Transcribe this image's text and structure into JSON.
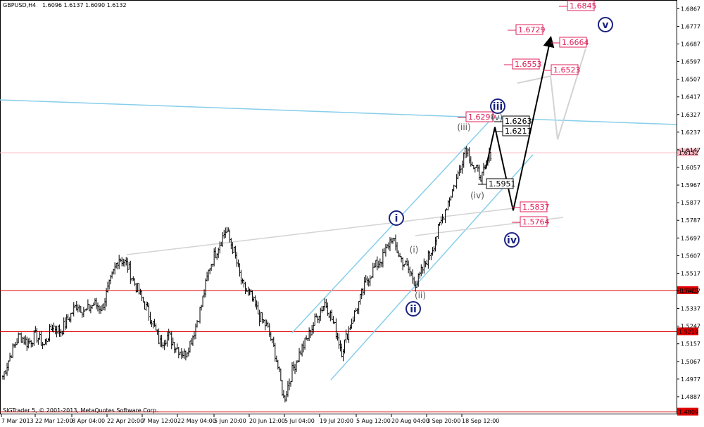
{
  "header": {
    "symbol": "GBPUSD,H4",
    "ohlc": "1.6096 1.6137 1.6090 1.6132"
  },
  "copyright": "SIGTrader 5, © 2001-2013, MetaQuotes Software Corp.",
  "chart_data": {
    "type": "candlestick",
    "x_labels": [
      "7 Mar 2013",
      "22 Mar 12:00",
      "8 Apr 04:00",
      "22 Apr 20:00",
      "7 May 12:00",
      "22 May 04:00",
      "5 Jun 20:00",
      "20 Jun 12:00",
      "5 Jul 04:00",
      "19 Jul 20:00",
      "5 Aug 12:00",
      "20 Aug 04:00",
      "3 Sep 20:00",
      "18 Sep 12:00"
    ],
    "y_ticks": [
      "1.6867",
      "1.6777",
      "1.6687",
      "1.6597",
      "1.6507",
      "1.6417",
      "1.6327",
      "1.6237",
      "1.6147",
      "1.6057",
      "1.5967",
      "1.5877",
      "1.5787",
      "1.5697",
      "1.5607",
      "1.5517",
      "1.5427",
      "1.5337",
      "1.5247",
      "1.5157",
      "1.5067",
      "1.4977",
      "1.4887"
    ],
    "ylim": [
      1.4797,
      1.6897
    ],
    "current_price": "1.6132",
    "support_levels": [
      "1.5429",
      "1.5219",
      "1.4809"
    ],
    "price_path": [
      {
        "x": "7 Mar 2013",
        "y": 1.499
      },
      {
        "x": "",
        "y": 1.511
      },
      {
        "x": "",
        "y": 1.52
      },
      {
        "x": "",
        "y": 1.516
      },
      {
        "x": "22 Mar 12:00",
        "y": 1.52
      },
      {
        "x": "",
        "y": 1.515
      },
      {
        "x": "",
        "y": 1.525
      },
      {
        "x": "",
        "y": 1.522
      },
      {
        "x": "8 Apr 04:00",
        "y": 1.529
      },
      {
        "x": "",
        "y": 1.536
      },
      {
        "x": "",
        "y": 1.532
      },
      {
        "x": "",
        "y": 1.536
      },
      {
        "x": "",
        "y": 1.534
      },
      {
        "x": "22 Apr 20:00",
        "y": 1.547
      },
      {
        "x": "",
        "y": 1.56
      },
      {
        "x": "",
        "y": 1.556
      },
      {
        "x": "",
        "y": 1.546
      },
      {
        "x": "7 May 12:00",
        "y": 1.537
      },
      {
        "x": "",
        "y": 1.528
      },
      {
        "x": "",
        "y": 1.516
      },
      {
        "x": "",
        "y": 1.52
      },
      {
        "x": "22 May 04:00",
        "y": 1.514
      },
      {
        "x": "",
        "y": 1.51
      },
      {
        "x": "",
        "y": 1.52
      },
      {
        "x": "",
        "y": 1.535
      },
      {
        "x": "5 Jun 20:00",
        "y": 1.555
      },
      {
        "x": "",
        "y": 1.565
      },
      {
        "x": "",
        "y": 1.574
      },
      {
        "x": "",
        "y": 1.562
      },
      {
        "x": "20 Jun 12:00",
        "y": 1.545
      },
      {
        "x": "",
        "y": 1.54
      },
      {
        "x": "",
        "y": 1.53
      },
      {
        "x": "",
        "y": 1.524
      },
      {
        "x": "",
        "y": 1.51
      },
      {
        "x": "5 Jul 04:00",
        "y": 1.487
      },
      {
        "x": "",
        "y": 1.502
      },
      {
        "x": "",
        "y": 1.512
      },
      {
        "x": "",
        "y": 1.52
      },
      {
        "x": "",
        "y": 1.53
      },
      {
        "x": "19 Jul 20:00",
        "y": 1.537
      },
      {
        "x": "",
        "y": 1.526
      },
      {
        "x": "",
        "y": 1.512
      },
      {
        "x": "",
        "y": 1.525
      },
      {
        "x": "5 Aug 12:00",
        "y": 1.536
      },
      {
        "x": "",
        "y": 1.548
      },
      {
        "x": "",
        "y": 1.555
      },
      {
        "x": "",
        "y": 1.56
      },
      {
        "x": "20 Aug 04:00",
        "y": 1.57
      },
      {
        "x": "",
        "y": 1.56
      },
      {
        "x": "",
        "y": 1.554
      },
      {
        "x": "",
        "y": 1.546
      },
      {
        "x": "",
        "y": 1.556
      },
      {
        "x": "3 Sep 20:00",
        "y": 1.565
      },
      {
        "x": "",
        "y": 1.578
      },
      {
        "x": "",
        "y": 1.59
      },
      {
        "x": "",
        "y": 1.601
      },
      {
        "x": "",
        "y": 1.617
      },
      {
        "x": "",
        "y": 1.605
      },
      {
        "x": "18 Sep 12:00",
        "y": 1.601
      },
      {
        "x": "",
        "y": 1.613
      }
    ],
    "channel_color": "#87ceeb",
    "line_color": "#000000",
    "forecast": {
      "main_path_labels": [
        "1.6263",
        "1.5837",
        "1.6729"
      ],
      "main_path_values": [
        1.6263,
        1.5837,
        1.6729
      ],
      "alt_path_values": [
        1.6523,
        1.62,
        1.6664
      ]
    }
  },
  "levels": [
    {
      "label": "1.6845",
      "value": 1.6845,
      "style": "red"
    },
    {
      "label": "1.6729",
      "value": 1.6729,
      "style": "red"
    },
    {
      "label": "1.6664",
      "value": 1.6664,
      "style": "red"
    },
    {
      "label": "1.6553",
      "value": 1.6553,
      "style": "red"
    },
    {
      "label": "1.6523",
      "value": 1.6523,
      "style": "red"
    },
    {
      "label": "1.6290",
      "value": 1.629,
      "style": "red"
    },
    {
      "label": "1.6263",
      "value": 1.6263,
      "style": "black"
    },
    {
      "label": "1.6217",
      "value": 1.6217,
      "style": "black"
    },
    {
      "label": "1.5951",
      "value": 1.5951,
      "style": "black"
    },
    {
      "label": "1.5837",
      "value": 1.5837,
      "style": "red"
    },
    {
      "label": "1.5764",
      "value": 1.5764,
      "style": "red"
    }
  ],
  "wave_labels": [
    {
      "text": "i",
      "style": "blue"
    },
    {
      "text": "ii",
      "style": "blue"
    },
    {
      "text": "iii",
      "style": "blue"
    },
    {
      "text": "iv",
      "style": "blue"
    },
    {
      "text": "v",
      "style": "blue"
    },
    {
      "text": "(i)",
      "style": "grey"
    },
    {
      "text": "(ii)",
      "style": "grey"
    },
    {
      "text": "(iii)",
      "style": "grey"
    },
    {
      "text": "(iv)",
      "style": "grey"
    },
    {
      "text": "(v)",
      "style": "grey"
    }
  ]
}
